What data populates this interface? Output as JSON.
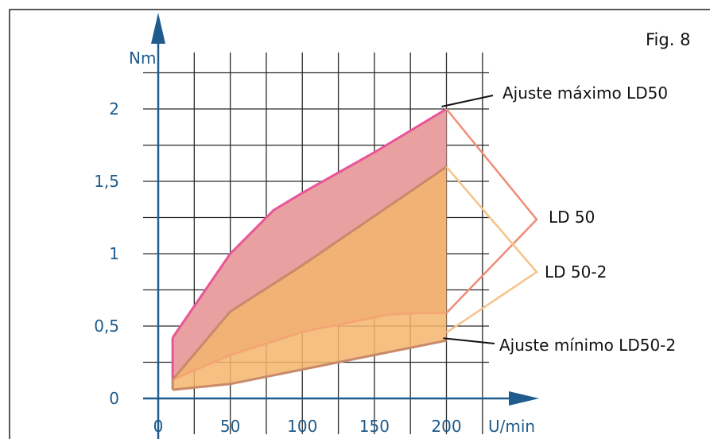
{
  "figure_label": "Fig. 8",
  "chart_data": {
    "type": "area",
    "xlabel": "U/min",
    "ylabel": "Nm",
    "x_ticks": [
      0,
      50,
      100,
      150,
      200
    ],
    "y_ticks": [
      {
        "value": 0,
        "label": "0"
      },
      {
        "value": 0.5,
        "label": "0,5"
      },
      {
        "value": 1,
        "label": "1"
      },
      {
        "value": 1.5,
        "label": "1,5"
      },
      {
        "value": 2,
        "label": "2"
      }
    ],
    "xlim": [
      0,
      235
    ],
    "ylim": [
      0,
      2.35
    ],
    "grid": true,
    "regions": [
      {
        "name": "LD 50",
        "fill": "#e8a0a0",
        "stroke": "#e8559a",
        "upper": [
          [
            10,
            0.42
          ],
          [
            50,
            1.0
          ],
          [
            80,
            1.3
          ],
          [
            100,
            1.42
          ],
          [
            150,
            1.7
          ],
          [
            200,
            2.0
          ]
        ],
        "lower": [
          [
            200,
            0.59
          ],
          [
            180,
            0.59
          ],
          [
            160,
            0.58
          ],
          [
            100,
            0.46
          ],
          [
            50,
            0.3
          ],
          [
            10,
            0.13
          ]
        ]
      },
      {
        "name": "LD 50-2",
        "fill": "#f5b56d",
        "fill_opacity": 0.85,
        "stroke": "#c78a6a",
        "upper": [
          [
            10,
            0.13
          ],
          [
            50,
            0.6
          ],
          [
            100,
            0.92
          ],
          [
            200,
            1.6
          ]
        ],
        "lower": [
          [
            200,
            0.4
          ],
          [
            150,
            0.3
          ],
          [
            100,
            0.2
          ],
          [
            50,
            0.1
          ],
          [
            10,
            0.06
          ]
        ]
      }
    ],
    "annotations": [
      {
        "text": "Ajuste máximo LD50",
        "at": [
          200,
          2.0
        ]
      },
      {
        "text": "LD 50",
        "brackets": [
          [
            200,
            2.0
          ],
          [
            200,
            0.59
          ]
        ],
        "color": "#ef8c78"
      },
      {
        "text": "LD 50-2",
        "brackets": [
          [
            200,
            1.6
          ],
          [
            200,
            0.4
          ]
        ],
        "color": "#f7c28a"
      },
      {
        "text": "Ajuste mínimo LD50-2",
        "at": [
          200,
          0.4
        ]
      }
    ]
  }
}
